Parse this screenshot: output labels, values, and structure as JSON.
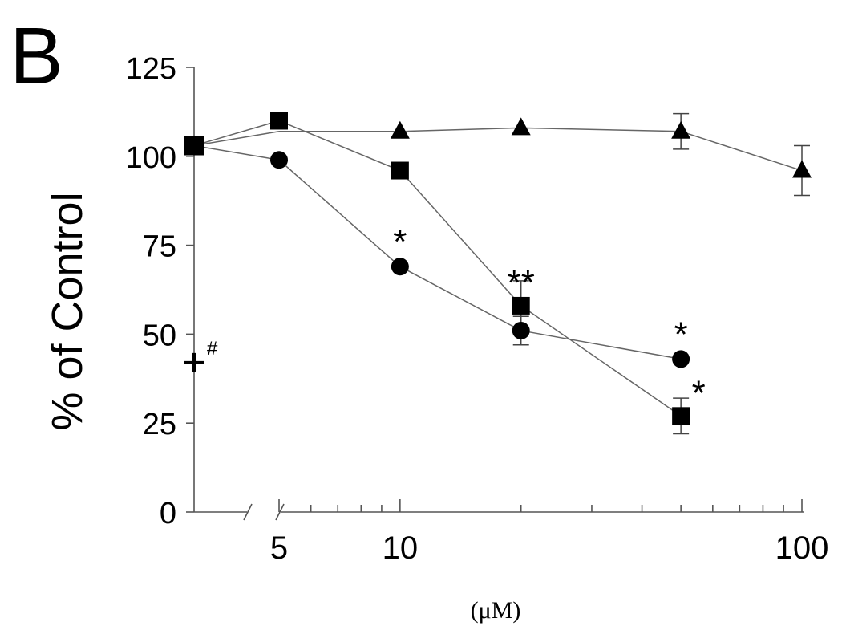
{
  "chart_data": {
    "type": "line",
    "panel_label": "B",
    "ylabel": "% of Control",
    "xlabel": "(μM)",
    "ylim": [
      0,
      125
    ],
    "y_ticks": [
      0,
      25,
      50,
      75,
      100,
      125
    ],
    "x_scale": "log",
    "xlim": [
      5,
      100
    ],
    "x_ticks": [
      5,
      10,
      100
    ],
    "x_tick_labels": [
      "5",
      "10",
      "100"
    ],
    "x_minor_ticks": [
      6,
      7,
      8,
      9,
      20,
      30,
      40,
      50,
      60,
      70,
      80,
      90
    ],
    "axis_break": true,
    "control_value": 103,
    "series": [
      {
        "marker": "square",
        "points": [
          {
            "x": 5,
            "y": 110
          },
          {
            "x": 10,
            "y": 96
          },
          {
            "x": 20,
            "y": 58,
            "err": 7,
            "annotation": "**"
          },
          {
            "x": 50,
            "y": 27,
            "err": 5,
            "annotation": "*"
          }
        ]
      },
      {
        "marker": "circle",
        "points": [
          {
            "x": 5,
            "y": 99
          },
          {
            "x": 10,
            "y": 69,
            "annotation": "*"
          },
          {
            "x": 20,
            "y": 51,
            "err": 4
          },
          {
            "x": 50,
            "y": 43,
            "annotation": "*"
          }
        ]
      },
      {
        "marker": "triangle",
        "points": [
          {
            "x": 10,
            "y": 107
          },
          {
            "x": 20,
            "y": 108
          },
          {
            "x": 50,
            "y": 107,
            "err": 5
          },
          {
            "x": 100,
            "y": 96,
            "err": 7
          }
        ]
      }
    ],
    "reference_point": {
      "marker": "plus",
      "y": 42,
      "annotation": "#"
    }
  }
}
